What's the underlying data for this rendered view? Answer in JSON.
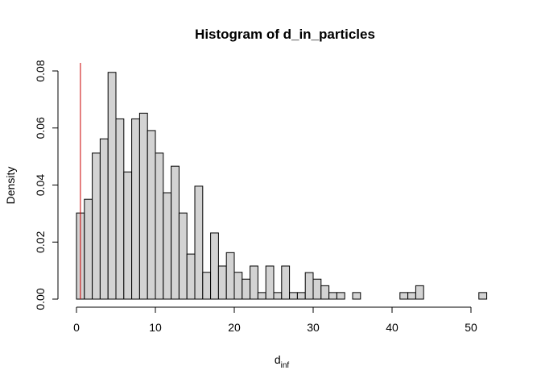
{
  "chart_data": {
    "type": "bar",
    "title": "Histogram of d_in_particles",
    "xlabel_main": "d",
    "xlabel_sub": "inf",
    "ylabel": "Density",
    "xlim": [
      0,
      53
    ],
    "ylim": [
      0,
      0.08
    ],
    "bin_width": 1,
    "bin_start": 0,
    "values": [
      0.0302,
      0.035,
      0.0512,
      0.0562,
      0.0795,
      0.0632,
      0.0446,
      0.0632,
      0.0652,
      0.0591,
      0.0512,
      0.0373,
      0.0466,
      0.0302,
      0.0158,
      0.0396,
      0.0094,
      0.0232,
      0.0116,
      0.0163,
      0.0094,
      0.007,
      0.0116,
      0.0023,
      0.0116,
      0.0023,
      0.0116,
      0.0023,
      0.0023,
      0.0093,
      0.007,
      0.0047,
      0.0023,
      0.0023,
      0.0,
      0.0023,
      0.0,
      0.0,
      0.0,
      0.0,
      0.0,
      0.0023,
      0.0023,
      0.0047,
      0.0,
      0.0,
      0.0,
      0.0,
      0.0,
      0.0,
      0.0,
      0.0023
    ],
    "x_ticks": [
      0,
      10,
      20,
      30,
      40,
      50
    ],
    "y_ticks": [
      0.0,
      0.02,
      0.04,
      0.06,
      0.08
    ],
    "x_tick_labels": [
      "0",
      "10",
      "20",
      "30",
      "40",
      "50"
    ],
    "y_tick_labels": [
      "0.00",
      "0.02",
      "0.04",
      "0.06",
      "0.08"
    ],
    "reference_line_x": 0.5,
    "grid": false,
    "colors": {
      "bar_fill": "#d3d3d3",
      "bar_stroke": "#000000",
      "reference_line": "#cc0000"
    }
  }
}
